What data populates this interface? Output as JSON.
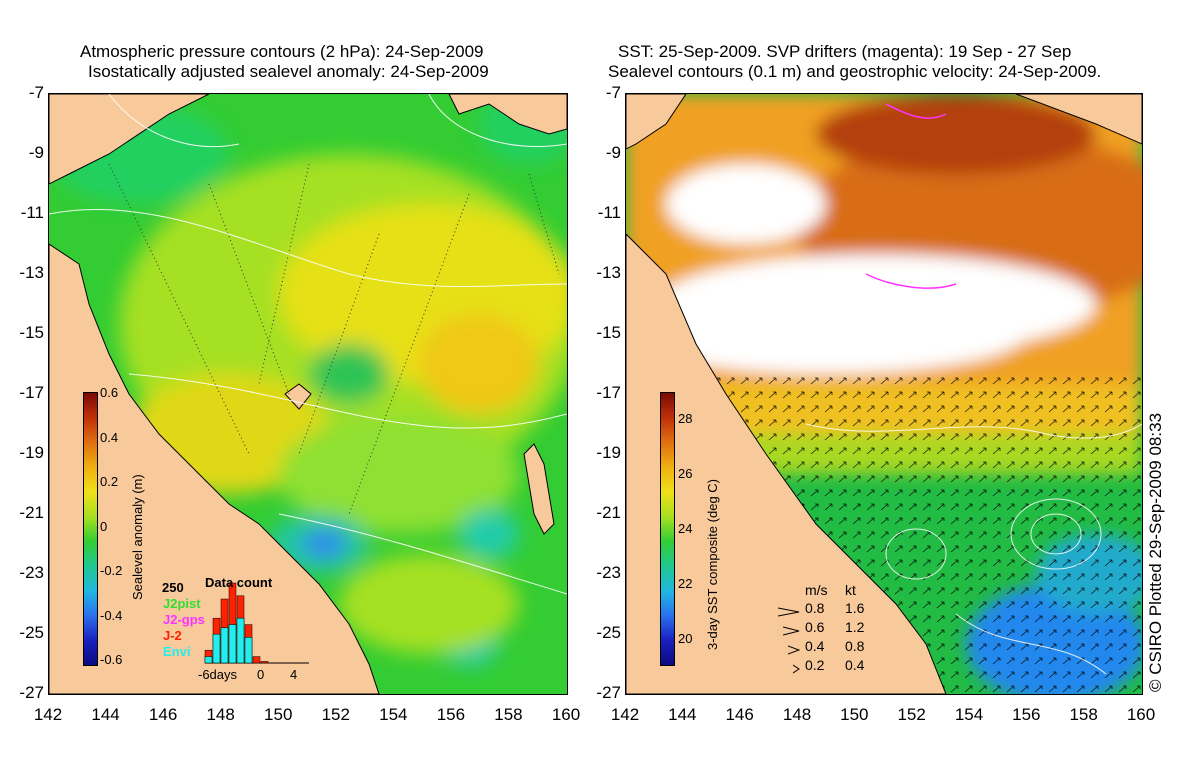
{
  "left_panel": {
    "title_line1": "Atmospheric pressure contours (2 hPa): 24-Sep-2009",
    "title_line2": "Isostatically adjusted sealevel anomaly: 24-Sep-2009",
    "colorbar": {
      "label": "Sealevel anomaly (m)",
      "ticks": [
        "0.6",
        "0.4",
        "0.2",
        "0",
        "-0.2",
        "-0.4",
        "-0.6"
      ]
    },
    "data_count": {
      "title": "Data count",
      "max_label": "250",
      "sources": [
        {
          "name": "J2pist",
          "color": "#33dd33"
        },
        {
          "name": "J2-gps",
          "color": "#ff33ff"
        },
        {
          "name": "J-2",
          "color": "#ff2200"
        },
        {
          "name": "Envi",
          "color": "#22eeee"
        }
      ],
      "axis_labels": [
        "-6days",
        "0",
        "4"
      ],
      "bars_red": [
        40,
        140,
        200,
        250,
        210,
        120,
        20,
        5
      ],
      "bars_cyan": [
        20,
        90,
        110,
        120,
        140,
        80,
        0,
        0
      ]
    }
  },
  "right_panel": {
    "title_line1": "SST: 25-Sep-2009. SVP drifters (magenta): 19 Sep - 27 Sep",
    "title_line2": "Sealevel contours (0.1 m) and geostrophic velocity: 24-Sep-2009.",
    "colorbar": {
      "label": "3-day SST composite (deg C)",
      "ticks": [
        "28",
        "26",
        "24",
        "22",
        "20"
      ]
    },
    "velocity_legend": {
      "headers": [
        "m/s",
        "kt"
      ],
      "rows": [
        [
          "0.8",
          "1.6"
        ],
        [
          "0.6",
          "1.2"
        ],
        [
          "0.4",
          "0.8"
        ],
        [
          "0.2",
          "0.4"
        ]
      ]
    }
  },
  "axes": {
    "lat_ticks": [
      "-7",
      "-9",
      "-11",
      "-13",
      "-15",
      "-17",
      "-19",
      "-21",
      "-23",
      "-25",
      "-27"
    ],
    "lon_ticks": [
      "142",
      "144",
      "146",
      "148",
      "150",
      "152",
      "154",
      "156",
      "158",
      "160"
    ]
  },
  "credit": "© CSIRO Plotted 29-Sep-2009 08:33",
  "colors": {
    "land": "#f7c99b",
    "background": "#ffffff"
  }
}
